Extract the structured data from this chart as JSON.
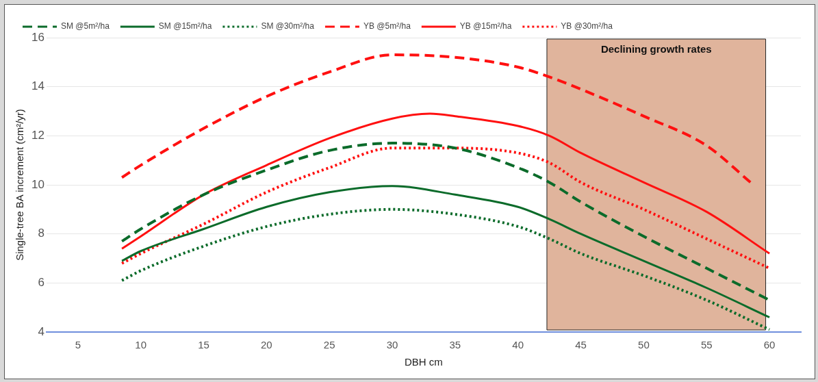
{
  "chart_data": {
    "type": "line",
    "xlabel": "DBH cm",
    "ylabel": "Single-tree BA increment (cm²/yr)",
    "xlim": [
      2.5,
      62.5
    ],
    "xticks": [
      5,
      10,
      15,
      20,
      25,
      30,
      35,
      40,
      45,
      50,
      55,
      60
    ],
    "ylim": [
      4,
      16
    ],
    "yticks": [
      4,
      6,
      8,
      10,
      12,
      14,
      16
    ],
    "grid": "y",
    "legend": "top left",
    "marker": "none",
    "bands": [
      {
        "axis": "x",
        "from": 42.3,
        "to": 59.7,
        "label": "Declining growth rates",
        "color": "#e0b49c"
      }
    ],
    "series": [
      {
        "name": "SM @5m²/ha",
        "color": "#0b6b2a",
        "line_style": "dashed",
        "x": [
          8.5,
          10,
          15,
          20,
          25,
          30,
          35,
          40,
          42.5,
          45,
          50,
          55,
          60
        ],
        "values": [
          7.7,
          8.2,
          9.6,
          10.6,
          11.4,
          11.7,
          11.5,
          10.7,
          10.1,
          9.3,
          7.9,
          6.6,
          5.3
        ]
      },
      {
        "name": "SM @15m²/ha",
        "color": "#0b6b2a",
        "line_style": "solid",
        "x": [
          8.5,
          10,
          15,
          20,
          25,
          30,
          35,
          40,
          42.5,
          45,
          50,
          55,
          60
        ],
        "values": [
          6.9,
          7.3,
          8.2,
          9.1,
          9.7,
          9.95,
          9.6,
          9.1,
          8.6,
          8.0,
          6.9,
          5.8,
          4.6
        ]
      },
      {
        "name": "SM @30m²/ha",
        "color": "#0b6b2a",
        "line_style": "dotted",
        "x": [
          8.5,
          10,
          15,
          20,
          25,
          30,
          35,
          40,
          42.5,
          45,
          50,
          55,
          60
        ],
        "values": [
          6.1,
          6.5,
          7.5,
          8.3,
          8.8,
          9.0,
          8.8,
          8.3,
          7.8,
          7.2,
          6.3,
          5.3,
          4.1
        ]
      },
      {
        "name": "YB @5m²/ha",
        "color": "#ff1010",
        "line_style": "dashed",
        "x": [
          8.5,
          10,
          15,
          20,
          25,
          30,
          35,
          40,
          42.5,
          45,
          50,
          55,
          58.5
        ],
        "values": [
          10.3,
          10.8,
          12.3,
          13.6,
          14.6,
          15.3,
          15.2,
          14.8,
          14.4,
          13.9,
          12.8,
          11.6,
          10.1
        ]
      },
      {
        "name": "YB @15m²/ha",
        "color": "#ff1010",
        "line_style": "solid",
        "x": [
          8.5,
          10,
          15,
          20,
          25,
          30,
          33,
          35,
          40,
          42.5,
          45,
          50,
          55,
          60
        ],
        "values": [
          7.4,
          7.9,
          9.6,
          10.8,
          11.9,
          12.7,
          12.9,
          12.8,
          12.4,
          12.0,
          11.3,
          10.1,
          8.9,
          7.2
        ]
      },
      {
        "name": "YB @30m²/ha",
        "color": "#ff1010",
        "line_style": "dotted",
        "x": [
          8.5,
          10,
          15,
          20,
          25,
          30,
          35,
          40,
          42.5,
          45,
          50,
          55,
          60
        ],
        "values": [
          6.8,
          7.2,
          8.4,
          9.7,
          10.7,
          11.5,
          11.5,
          11.3,
          10.9,
          10.1,
          9.0,
          7.8,
          6.6
        ]
      }
    ]
  }
}
